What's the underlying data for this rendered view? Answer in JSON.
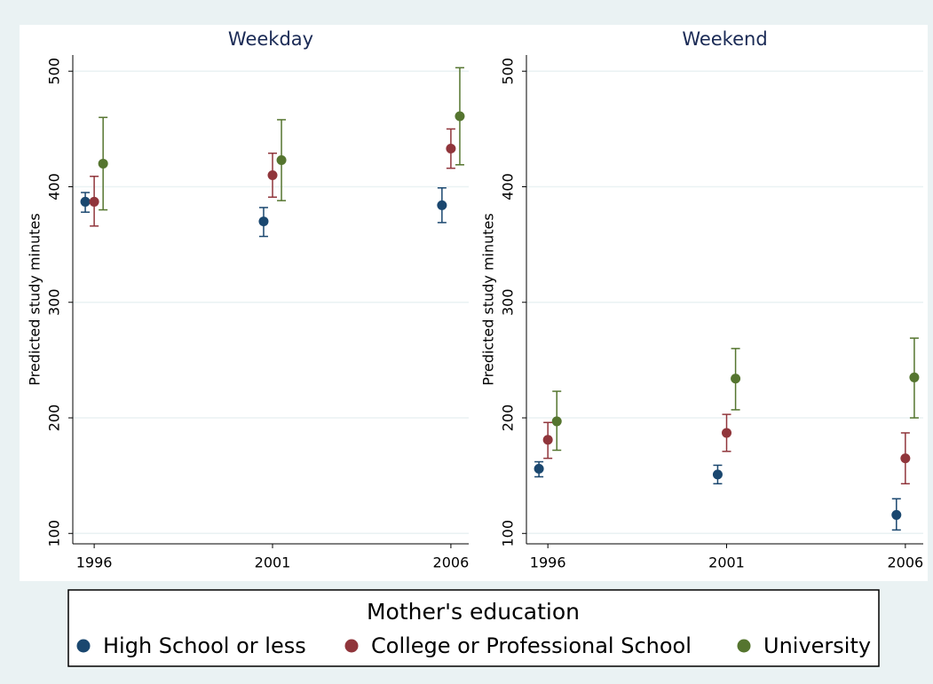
{
  "chart_data": [
    {
      "type": "errorbar",
      "title": "Weekday",
      "y_label": "Predicted study minutes",
      "xlim": [
        1995.4,
        2006.5
      ],
      "xticks": [
        1996,
        2001,
        2006
      ],
      "ylim": [
        91,
        514
      ],
      "yticks": [
        100,
        200,
        300,
        400,
        500
      ],
      "grid": true,
      "series": [
        {
          "name": "High School or less",
          "color": "#1a476f",
          "x": [
            1995.75,
            2000.75,
            2005.75
          ],
          "values": [
            387,
            370,
            384
          ],
          "lower": [
            378,
            357,
            369
          ],
          "upper": [
            395,
            382,
            399
          ]
        },
        {
          "name": "College or Professional School",
          "color": "#90353b",
          "x": [
            1996,
            2001,
            2006
          ],
          "values": [
            387,
            410,
            433
          ],
          "lower": [
            366,
            391,
            416
          ],
          "upper": [
            409,
            429,
            450
          ]
        },
        {
          "name": "University",
          "color": "#55752f",
          "x": [
            1996.25,
            2001.25,
            2006.25
          ],
          "values": [
            420,
            423,
            461
          ],
          "lower": [
            380,
            388,
            419
          ],
          "upper": [
            460,
            458,
            503
          ]
        }
      ]
    },
    {
      "type": "errorbar",
      "title": "Weekend",
      "y_label": "Predicted study minutes",
      "xlim": [
        1995.4,
        2006.5
      ],
      "xticks": [
        1996,
        2001,
        2006
      ],
      "ylim": [
        91,
        514
      ],
      "yticks": [
        100,
        200,
        300,
        400,
        500
      ],
      "grid": true,
      "series": [
        {
          "name": "High School or less",
          "color": "#1a476f",
          "x": [
            1995.75,
            2000.75,
            2005.75
          ],
          "values": [
            156,
            151,
            116
          ],
          "lower": [
            149,
            143,
            103
          ],
          "upper": [
            162,
            159,
            130
          ]
        },
        {
          "name": "College or Professional School",
          "color": "#90353b",
          "x": [
            1996,
            2001,
            2006
          ],
          "values": [
            181,
            187,
            165
          ],
          "lower": [
            165,
            171,
            143
          ],
          "upper": [
            196,
            203,
            187
          ]
        },
        {
          "name": "University",
          "color": "#55752f",
          "x": [
            1996.25,
            2001.25,
            2006.25
          ],
          "values": [
            197,
            234,
            235
          ],
          "lower": [
            172,
            207,
            200
          ],
          "upper": [
            223,
            260,
            269
          ]
        }
      ]
    }
  ],
  "legend": {
    "title": "Mother's education"
  }
}
